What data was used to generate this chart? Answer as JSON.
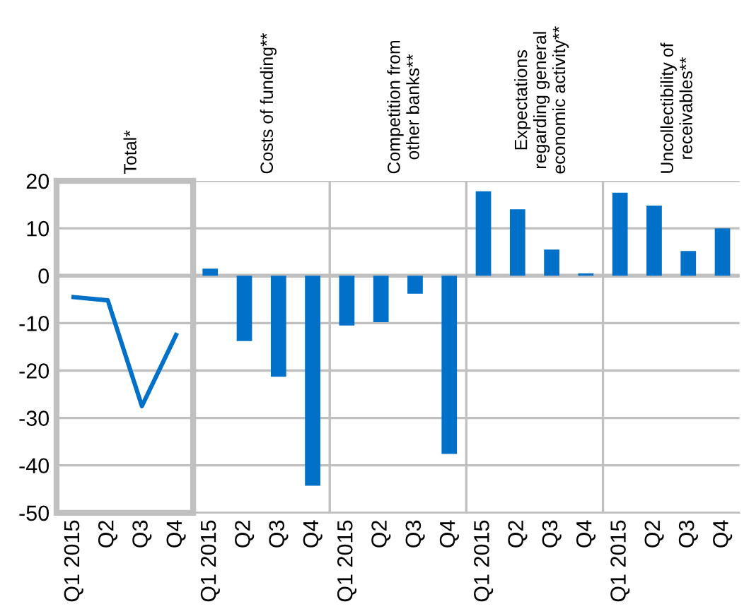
{
  "chart_data": {
    "type": "bar",
    "categories": [
      "Q1 2015",
      "Q2",
      "Q3",
      "Q4",
      "Q1 2015",
      "Q2",
      "Q3",
      "Q4",
      "Q1 2015",
      "Q2",
      "Q3",
      "Q4",
      "Q1 2015",
      "Q2",
      "Q3",
      "Q4",
      "Q1 2015",
      "Q2",
      "Q3",
      "Q4"
    ],
    "series": [
      {
        "type": "line",
        "color": "#0070c8",
        "values": [
          -4.5,
          -5.2,
          -27.5,
          -12.5,
          null,
          null,
          null,
          null,
          null,
          null,
          null,
          null,
          null,
          null,
          null,
          null,
          null,
          null,
          null,
          null
        ]
      },
      {
        "color": "#0070c8",
        "values": [
          null,
          null,
          null,
          null,
          1.5,
          -13.8,
          -21.3,
          -44.3,
          -10.5,
          -9.8,
          -3.8,
          -37.6,
          17.8,
          14.0,
          5.5,
          0.5,
          17.5,
          14.8,
          5.2,
          10.0
        ]
      }
    ],
    "annotations": [
      "Total*",
      "Costs of funding**",
      "Competition from\nother banks**",
      "Expectations\nregarding general\neconomic activity**",
      "Uncollectibility of\nreceivables**"
    ],
    "ylim": [
      -50,
      20
    ],
    "yticks": [
      -50,
      -40,
      -30,
      -20,
      -10,
      0,
      10,
      20
    ],
    "grid": "y",
    "marker": "none",
    "line_style": "solid",
    "legend": false
  }
}
